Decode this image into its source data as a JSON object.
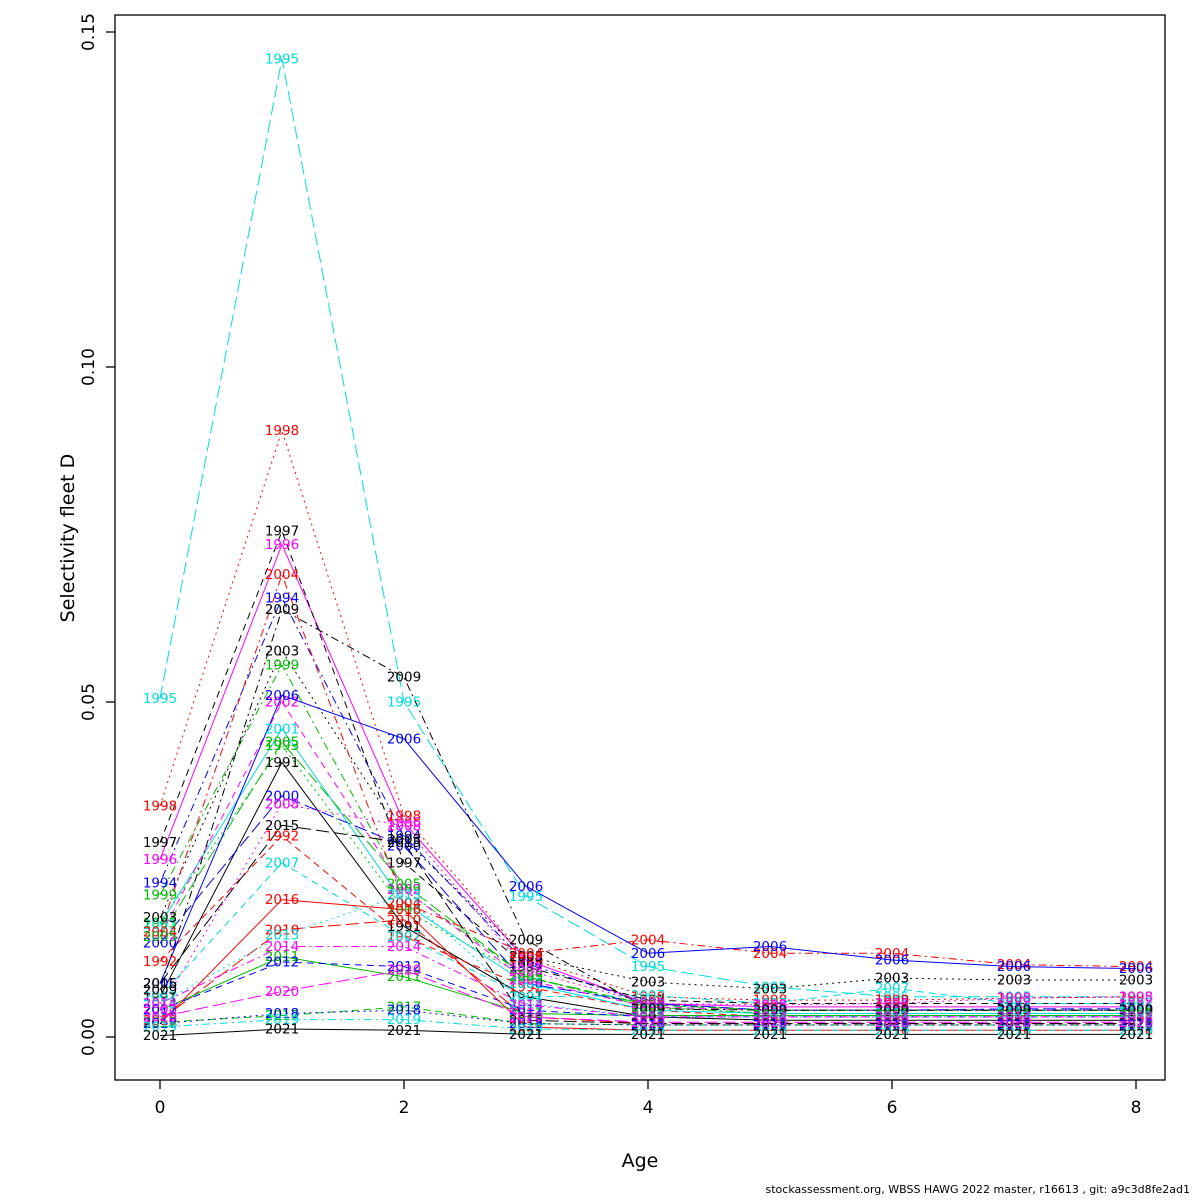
{
  "chart_data": {
    "type": "line",
    "title": "",
    "xlabel": "Age",
    "ylabel": "Selectivity fleet D",
    "grid": false,
    "legend": "none (series labeled by year text at each point)",
    "xlim": [
      -0.37,
      8.24
    ],
    "ylim": [
      -0.0064,
      0.1525
    ],
    "x": [
      0,
      1,
      2,
      3,
      4,
      5,
      6,
      7,
      8
    ],
    "x_ticks": {
      "values": [
        0,
        2,
        4,
        6,
        8
      ],
      "labels": [
        "0",
        "2",
        "4",
        "6",
        "8"
      ]
    },
    "y_ticks": {
      "values": [
        0,
        0.05,
        0.1,
        0.15
      ],
      "labels": [
        "0.00",
        "0.05",
        "0.10",
        "0.15"
      ]
    },
    "palette": {
      "black": "#000000",
      "red": "#FF0000",
      "green": "#00BB00",
      "blue": "#0000FF",
      "cyan": "#00DDDD",
      "magenta": "#FF00FF"
    },
    "series": [
      {
        "name": "1991",
        "color": "#000000",
        "lty": 1,
        "values": [
          0.006,
          0.041,
          0.0165,
          0.006,
          0.003,
          0.0025,
          0.0025,
          0.0025,
          0.0025
        ]
      },
      {
        "name": "1992",
        "color": "#FF0000",
        "lty": 2,
        "values": [
          0.0113,
          0.03,
          0.015,
          0.0075,
          0.004,
          0.003,
          0.003,
          0.003,
          0.003
        ]
      },
      {
        "name": "1993",
        "color": "#00BB00",
        "lty": 3,
        "values": [
          0.017,
          0.0435,
          0.019,
          0.009,
          0.0045,
          0.0035,
          0.0035,
          0.0035,
          0.0035
        ]
      },
      {
        "name": "1994",
        "color": "#0000FF",
        "lty": 4,
        "values": [
          0.023,
          0.0655,
          0.03,
          0.011,
          0.005,
          0.004,
          0.004,
          0.004,
          0.004
        ]
      },
      {
        "name": "1995",
        "color": "#00DDDD",
        "lty": 5,
        "values": [
          0.0505,
          0.146,
          0.05,
          0.021,
          0.0105,
          0.0075,
          0.006,
          0.006,
          0.006
        ]
      },
      {
        "name": "1996",
        "color": "#FF00FF",
        "lty": 1,
        "values": [
          0.0265,
          0.0735,
          0.032,
          0.0115,
          0.005,
          0.0045,
          0.0045,
          0.0045,
          0.0045
        ]
      },
      {
        "name": "1997",
        "color": "#000000",
        "lty": 2,
        "values": [
          0.029,
          0.0755,
          0.026,
          0.0105,
          0.0055,
          0.005,
          0.005,
          0.005,
          0.005
        ]
      },
      {
        "name": "1998",
        "color": "#FF0000",
        "lty": 3,
        "values": [
          0.0345,
          0.0905,
          0.033,
          0.0118,
          0.006,
          0.0055,
          0.0055,
          0.0058,
          0.006
        ]
      },
      {
        "name": "1999",
        "color": "#00BB00",
        "lty": 4,
        "values": [
          0.0212,
          0.0555,
          0.022,
          0.009,
          0.0045,
          0.0035,
          0.0035,
          0.0035,
          0.0035
        ]
      },
      {
        "name": "2000",
        "color": "#0000FF",
        "lty": 5,
        "values": [
          0.014,
          0.036,
          0.0285,
          0.008,
          0.005,
          0.004,
          0.004,
          0.0042,
          0.0042
        ]
      },
      {
        "name": "2001",
        "color": "#00DDDD",
        "lty": 1,
        "values": [
          0.0168,
          0.046,
          0.02,
          0.008,
          0.004,
          0.0035,
          0.0035,
          0.0035,
          0.0035
        ]
      },
      {
        "name": "2002",
        "color": "#FF00FF",
        "lty": 2,
        "values": [
          0.015,
          0.05,
          0.022,
          0.0085,
          0.0045,
          0.004,
          0.004,
          0.004,
          0.004
        ]
      },
      {
        "name": "2003",
        "color": "#000000",
        "lty": 3,
        "values": [
          0.0178,
          0.0576,
          0.0295,
          0.012,
          0.0082,
          0.0072,
          0.0088,
          0.0085,
          0.0085
        ]
      },
      {
        "name": "2004",
        "color": "#FF0000",
        "lty": 4,
        "values": [
          0.0157,
          0.069,
          0.02,
          0.0125,
          0.0145,
          0.0125,
          0.0125,
          0.0108,
          0.0105
        ]
      },
      {
        "name": "2005",
        "color": "#00BB00",
        "lty": 5,
        "values": [
          0.015,
          0.044,
          0.0228,
          0.009,
          0.0048,
          0.004,
          0.004,
          0.004,
          0.004
        ]
      },
      {
        "name": "2006",
        "color": "#0000FF",
        "lty": 1,
        "values": [
          0.008,
          0.051,
          0.0445,
          0.0225,
          0.0125,
          0.0135,
          0.0115,
          0.0105,
          0.0102
        ]
      },
      {
        "name": "2007",
        "color": "#00DDDD",
        "lty": 2,
        "values": [
          0.006,
          0.026,
          0.015,
          0.006,
          0.0062,
          0.005,
          0.0073,
          0.005,
          0.005
        ]
      },
      {
        "name": "2008",
        "color": "#FF00FF",
        "lty": 3,
        "values": [
          0.0042,
          0.0348,
          0.0315,
          0.01,
          0.005,
          0.0048,
          0.005,
          0.0058,
          0.006
        ]
      },
      {
        "name": "2009",
        "color": "#000000",
        "lty": 4,
        "values": [
          0.007,
          0.0638,
          0.0537,
          0.0145,
          0.0042,
          0.004,
          0.004,
          0.004,
          0.004
        ]
      },
      {
        "name": "2010",
        "color": "#FF0000",
        "lty": 5,
        "values": [
          0.0025,
          0.016,
          0.0175,
          0.003,
          0.002,
          0.002,
          0.002,
          0.002,
          0.002
        ]
      },
      {
        "name": "2011",
        "color": "#00BB00",
        "lty": 1,
        "values": [
          0.004,
          0.012,
          0.009,
          0.0035,
          0.0032,
          0.0032,
          0.0032,
          0.0032,
          0.0032
        ]
      },
      {
        "name": "2012",
        "color": "#0000FF",
        "lty": 2,
        "values": [
          0.004,
          0.0112,
          0.0105,
          0.004,
          0.003,
          0.003,
          0.003,
          0.003,
          0.003
        ]
      },
      {
        "name": "2013",
        "color": "#00DDDD",
        "lty": 3,
        "values": [
          0.005,
          0.0152,
          0.0212,
          0.005,
          0.003,
          0.003,
          0.003,
          0.003,
          0.003
        ]
      },
      {
        "name": "2014",
        "color": "#FF00FF",
        "lty": 4,
        "values": [
          0.005,
          0.0135,
          0.0135,
          0.0048,
          0.003,
          0.003,
          0.003,
          0.003,
          0.003
        ]
      },
      {
        "name": "2015",
        "color": "#000000",
        "lty": 5,
        "values": [
          0.008,
          0.0316,
          0.029,
          0.0025,
          0.002,
          0.002,
          0.002,
          0.002,
          0.002
        ]
      },
      {
        "name": "2016",
        "color": "#FF0000",
        "lty": 1,
        "values": [
          0.002,
          0.0205,
          0.019,
          0.0015,
          0.001,
          0.001,
          0.001,
          0.001,
          0.001
        ]
      },
      {
        "name": "2017",
        "color": "#00BB00",
        "lty": 2,
        "values": [
          0.0022,
          0.0032,
          0.0045,
          0.002,
          0.0018,
          0.0018,
          0.0018,
          0.0018,
          0.0018
        ]
      },
      {
        "name": "2018",
        "color": "#0000FF",
        "lty": 3,
        "values": [
          0.002,
          0.0035,
          0.004,
          0.002,
          0.0018,
          0.0018,
          0.0018,
          0.0018,
          0.0018
        ]
      },
      {
        "name": "2019",
        "color": "#00DDDD",
        "lty": 4,
        "values": [
          0.0015,
          0.0026,
          0.0026,
          0.0012,
          0.001,
          0.001,
          0.001,
          0.001,
          0.001
        ]
      },
      {
        "name": "2020",
        "color": "#FF00FF",
        "lty": 5,
        "values": [
          0.003,
          0.0068,
          0.01,
          0.003,
          0.0022,
          0.0022,
          0.0022,
          0.0022,
          0.0022
        ]
      },
      {
        "name": "2021",
        "color": "#000000",
        "lty": 1,
        "values": [
          0.0002,
          0.0012,
          0.001,
          0.0004,
          0.0004,
          0.0004,
          0.0004,
          0.0004,
          0.0004
        ]
      }
    ]
  },
  "footer": {
    "credit": "stockassessment.org, WBSS HAWG 2022 master, r16613 , git: a9c3d8fe2ad1"
  }
}
